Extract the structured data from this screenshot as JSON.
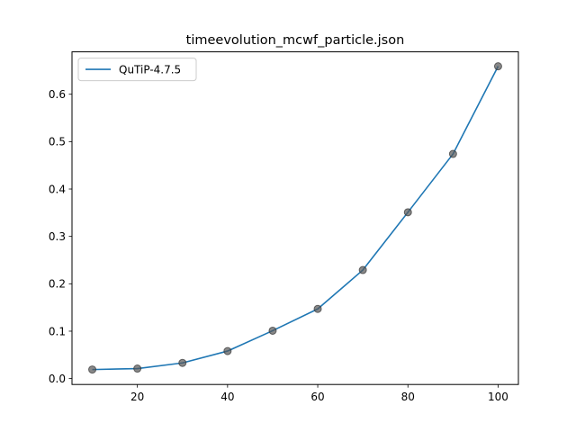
{
  "chart_data": {
    "type": "line",
    "title": "timeevolution_mcwf_particle.json",
    "xlabel": "",
    "ylabel": "",
    "xlim": [
      5.5,
      104.5
    ],
    "ylim": [
      -0.0125,
      0.6895
    ],
    "xticks": [
      {
        "value": 20,
        "label": "20"
      },
      {
        "value": 40,
        "label": "40"
      },
      {
        "value": 60,
        "label": "60"
      },
      {
        "value": 80,
        "label": "80"
      },
      {
        "value": 100,
        "label": "100"
      }
    ],
    "yticks": [
      {
        "value": 0.0,
        "label": "0.0"
      },
      {
        "value": 0.1,
        "label": "0.1"
      },
      {
        "value": 0.2,
        "label": "0.2"
      },
      {
        "value": 0.3,
        "label": "0.3"
      },
      {
        "value": 0.4,
        "label": "0.4"
      },
      {
        "value": 0.5,
        "label": "0.5"
      },
      {
        "value": 0.6,
        "label": "0.6"
      }
    ],
    "grid": false,
    "legend_position": "top-left",
    "series": [
      {
        "name": "QuTiP-4.7.5",
        "color": "#1f77b4",
        "marker_color": "#555555",
        "x": [
          10,
          20,
          30,
          40,
          50,
          60,
          70,
          80,
          90,
          100
        ],
        "y": [
          0.019,
          0.021,
          0.033,
          0.058,
          0.101,
          0.147,
          0.229,
          0.351,
          0.474,
          0.659
        ]
      }
    ]
  }
}
